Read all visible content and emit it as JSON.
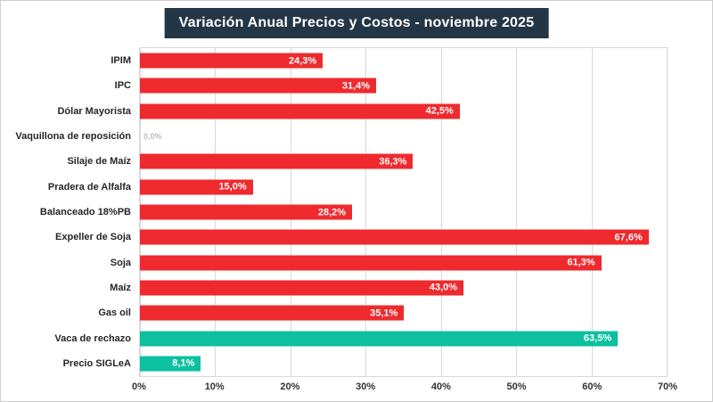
{
  "header": {
    "title": "Variación Anual Precios y Costos - noviembre 2025"
  },
  "colors": {
    "title_bg": "#233645",
    "title_text": "#ffffff",
    "bar_red": "#ee2a2e",
    "bar_green": "#0cc0a0",
    "gridline": "#d9d9d9",
    "category_text": "#262626",
    "value_text": "#ffffff",
    "zero_value_text": "#bdbdbd"
  },
  "chart_data": {
    "type": "bar",
    "orientation": "horizontal",
    "title": "Variación Anual Precios y Costos - noviembre 2025",
    "xlabel": "",
    "ylabel": "",
    "xlim": [
      0,
      70
    ],
    "grid": true,
    "tick_values": [
      0,
      10,
      20,
      30,
      40,
      50,
      60,
      70
    ],
    "tick_labels": [
      "0%",
      "10%",
      "20%",
      "30%",
      "40%",
      "50%",
      "60%",
      "70%"
    ],
    "categories": [
      "IPIM",
      "IPC",
      "Dólar Mayorista",
      "Vaquillona de reposición",
      "Silaje de Maíz",
      "Pradera de Alfalfa",
      "Balanceado 18%PB",
      "Expeller de Soja",
      "Soja",
      "Maíz",
      "Gas oil",
      "Vaca de rechazo",
      "Precio SIGLeA"
    ],
    "values": [
      24.3,
      31.4,
      42.5,
      0.0,
      36.3,
      15.0,
      28.2,
      67.6,
      61.3,
      43.0,
      35.1,
      63.5,
      8.1
    ],
    "value_labels": [
      "24,3%",
      "31,4%",
      "42,5%",
      "0,0%",
      "36,3%",
      "15,0%",
      "28,2%",
      "67,6%",
      "61,3%",
      "43,0%",
      "35,1%",
      "63,5%",
      "8,1%"
    ],
    "bar_colors": [
      "#ee2a2e",
      "#ee2a2e",
      "#ee2a2e",
      "#ee2a2e",
      "#ee2a2e",
      "#ee2a2e",
      "#ee2a2e",
      "#ee2a2e",
      "#ee2a2e",
      "#ee2a2e",
      "#ee2a2e",
      "#0cc0a0",
      "#0cc0a0"
    ]
  }
}
